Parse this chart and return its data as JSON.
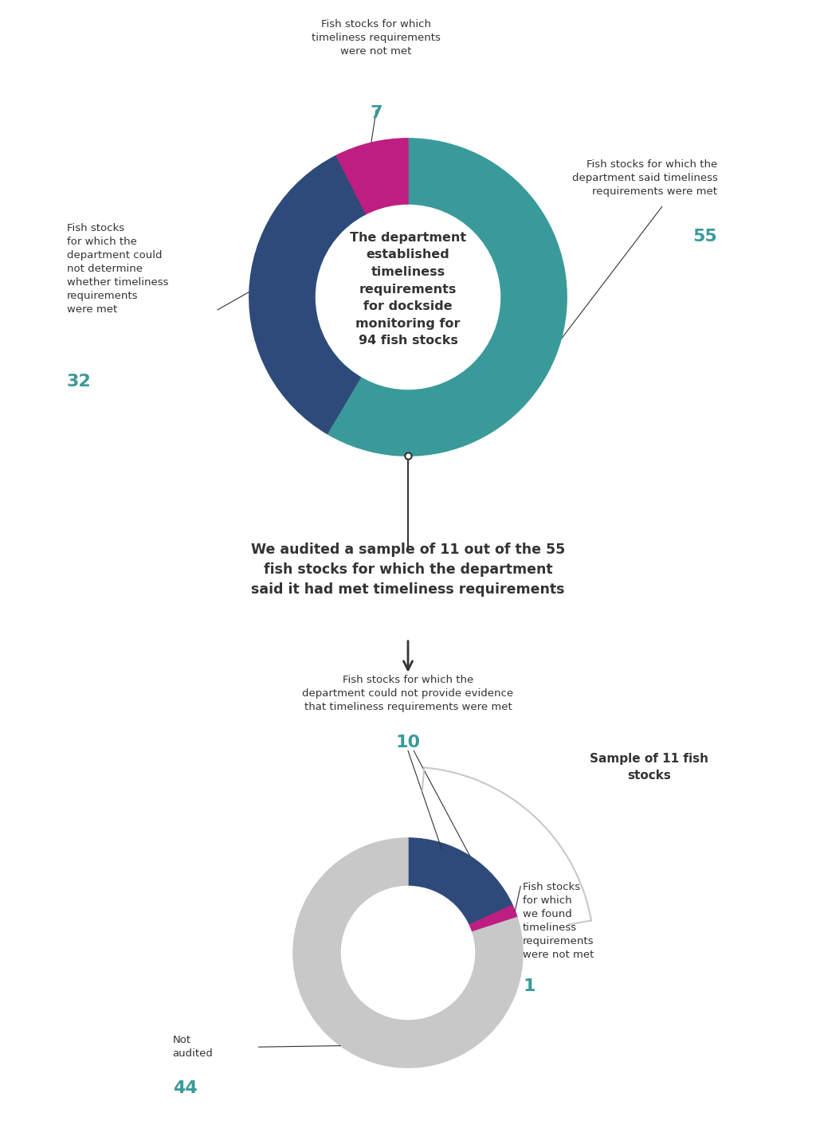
{
  "bg_color": "#ffffff",
  "teal": "#3a9a9a",
  "dark_blue": "#2d4a7a",
  "magenta": "#be1e82",
  "light_gray": "#c8c8c8",
  "dark_gray": "#333333",
  "donut1_values": [
    55,
    32,
    7
  ],
  "donut1_colors": [
    "#3a9a9a",
    "#2d4a7a",
    "#be1e82"
  ],
  "donut1_center": "The department\nestablished\ntimeliness\nrequirements\nfor dockside\nmonitoring for\n94 fish stocks",
  "label_55": "Fish stocks for which the\ndepartment said timeliness\nrequirements were met",
  "label_32": "Fish stocks\nfor which the\ndepartment could\nnot determine\nwhether timeliness\nrequirements\nwere met",
  "label_7": "Fish stocks for which\ntimeliness requirements\nwere not met",
  "num_55": "55",
  "num_32": "32",
  "num_7": "7",
  "connector_text": "We audited a sample of 11 out of the 55\nfish stocks for which the department\nsaid it had met timeliness requirements",
  "donut2_values": [
    10,
    1,
    44
  ],
  "donut2_colors": [
    "#2d4a7a",
    "#be1e82",
    "#c8c8c8"
  ],
  "label_10": "Fish stocks for which the\ndepartment could not provide evidence\nthat timeliness requirements were met",
  "label_1": "Fish stocks\nfor which\nwe found\ntimeliness\nrequirements\nwere not met",
  "label_44": "Not\naudited",
  "num_10": "10",
  "num_1": "1",
  "num_44": "44",
  "sample_label": "Sample of 11 fish\nstocks"
}
